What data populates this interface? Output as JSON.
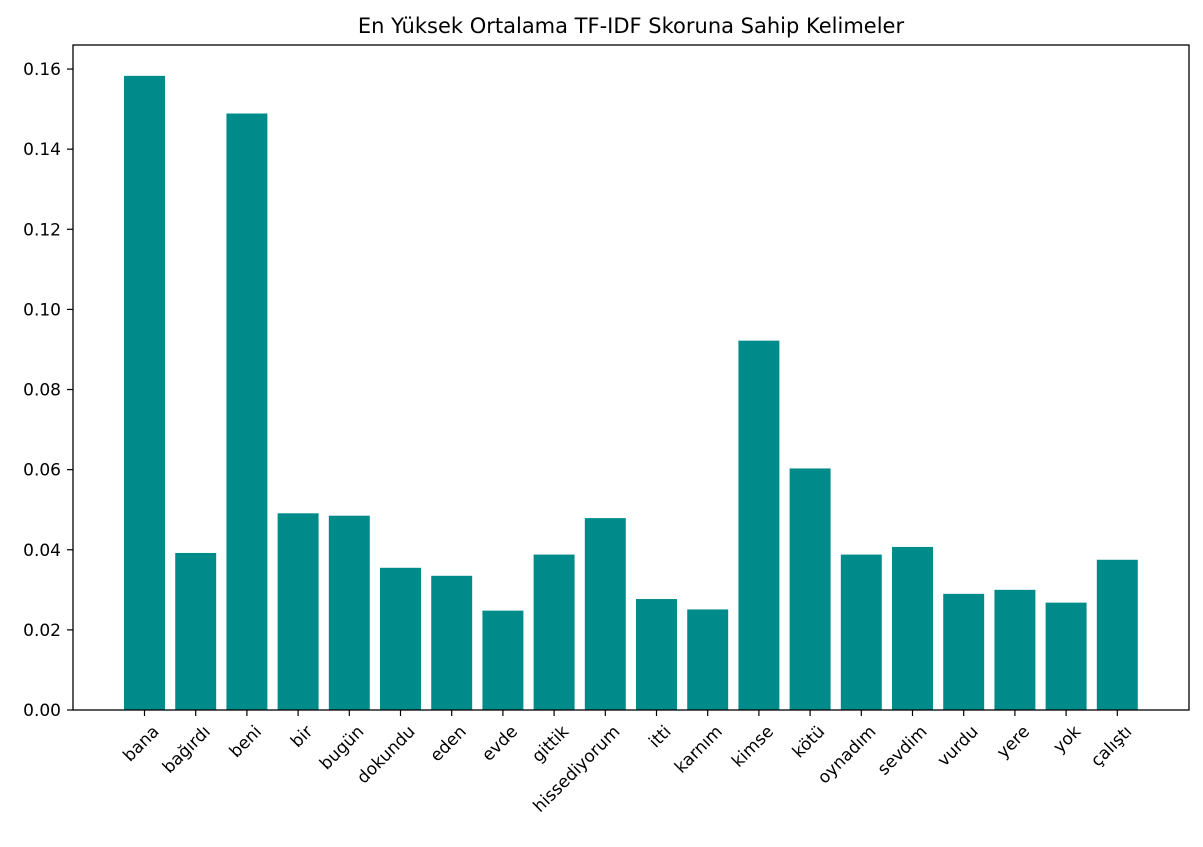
{
  "chart_data": {
    "type": "bar",
    "title": "En Yüksek Ortalama TF-IDF Skoruna Sahip Kelimeler",
    "xlabel": "",
    "ylabel": "",
    "categories": [
      "bana",
      "bağırdı",
      "beni",
      "bir",
      "bugün",
      "dokundu",
      "eden",
      "evde",
      "gittik",
      "hissediyorum",
      "itti",
      "karnım",
      "kimse",
      "kötü",
      "oynadım",
      "sevdim",
      "vurdu",
      "yere",
      "yok",
      "çalıştı"
    ],
    "values": [
      0.1583,
      0.0392,
      0.1489,
      0.0491,
      0.0485,
      0.0355,
      0.0335,
      0.0248,
      0.0388,
      0.0479,
      0.0277,
      0.0251,
      0.0922,
      0.0603,
      0.0388,
      0.0407,
      0.029,
      0.03,
      0.0268,
      0.0375
    ],
    "ylim": [
      0,
      0.166
    ],
    "yticks": [
      "0.00",
      "0.02",
      "0.04",
      "0.06",
      "0.08",
      "0.10",
      "0.12",
      "0.14",
      "0.16"
    ],
    "bar_color": "#008b8b",
    "grid": false,
    "legend": "none",
    "xtick_rotation": "45"
  }
}
